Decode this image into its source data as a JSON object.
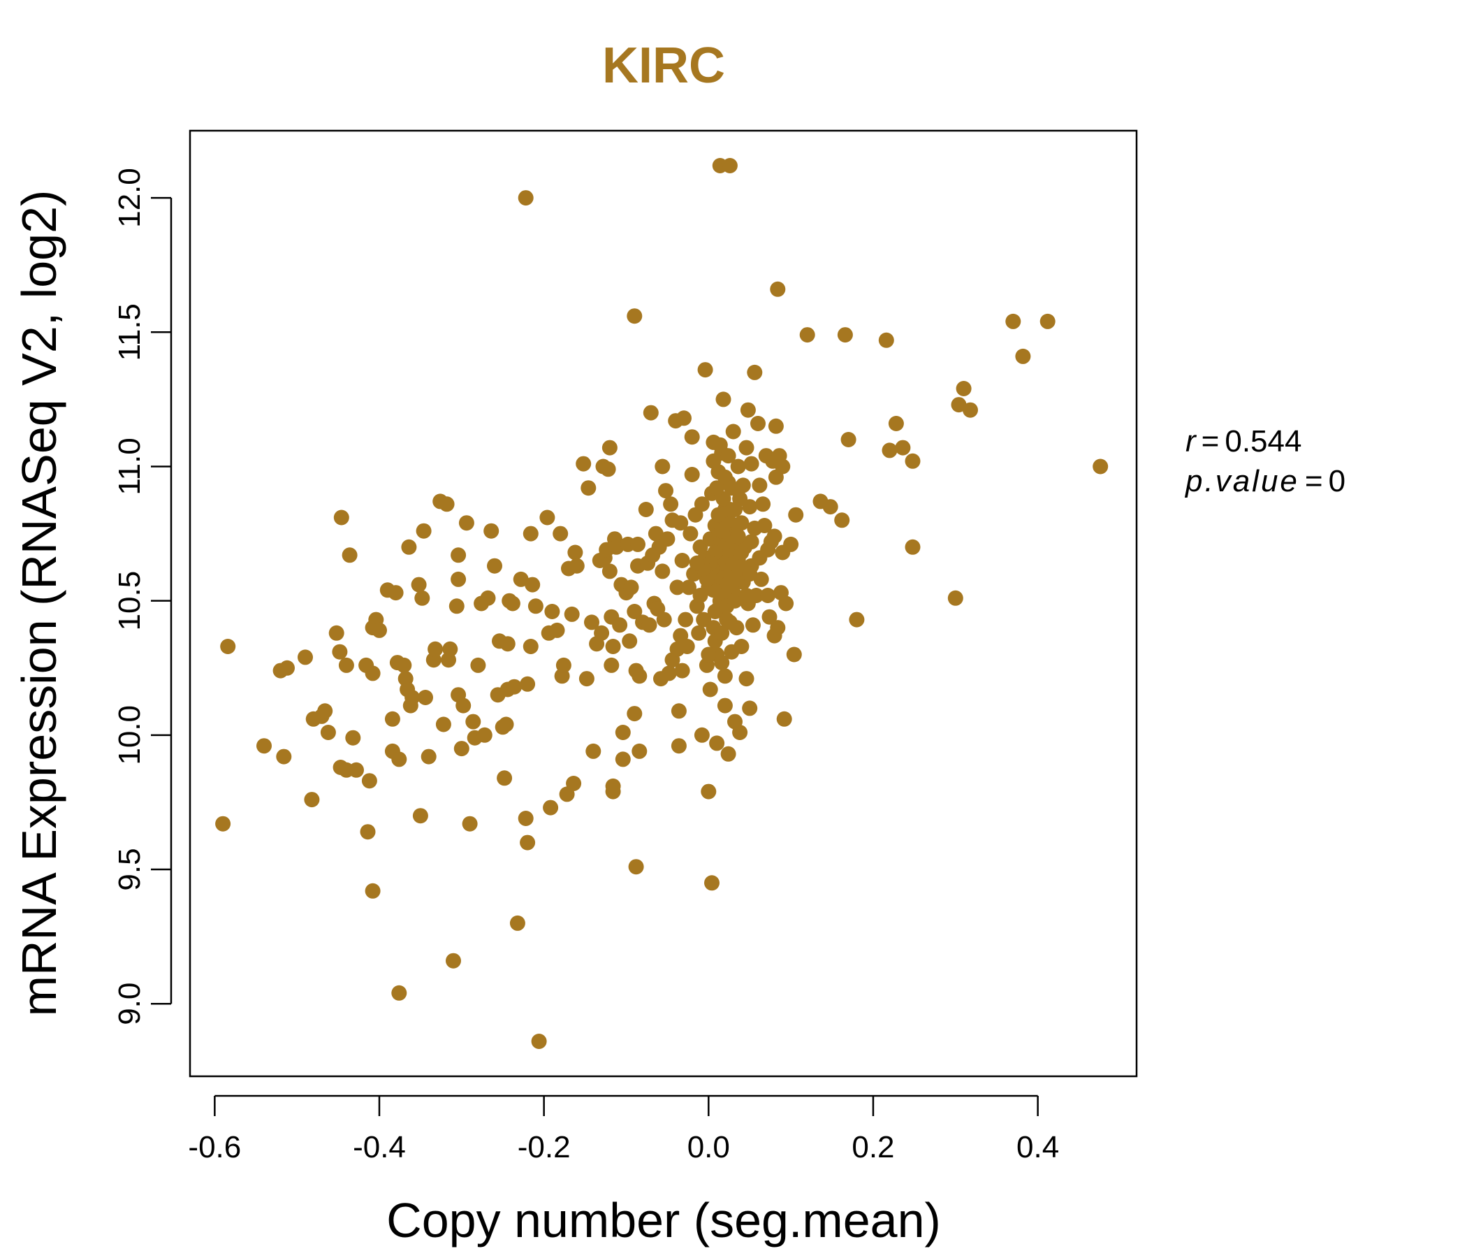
{
  "chart_data": {
    "type": "scatter",
    "title": "KIRC",
    "xlabel": "Copy number (seg.mean)",
    "ylabel": "mRNA Expression (RNASeq V2, log2)",
    "xlim": [
      -0.63,
      0.52
    ],
    "ylim": [
      8.73,
      12.25
    ],
    "x_ticks": [
      -0.6,
      -0.4,
      -0.2,
      0.0,
      0.2,
      0.4
    ],
    "x_tick_labels": [
      "-0.6",
      "-0.4",
      "-0.2",
      "0.0",
      "0.2",
      "0.4"
    ],
    "y_ticks": [
      9.0,
      9.5,
      10.0,
      10.5,
      11.0,
      11.5,
      12.0
    ],
    "y_tick_labels": [
      "9.0",
      "9.5",
      "10.0",
      "10.5",
      "11.0",
      "11.5",
      "12.0"
    ],
    "grid": false,
    "point_color": "#A67720",
    "annotation": {
      "r_symbol": "r",
      "r_value": "0.544",
      "p_symbol": "p.value",
      "p_value": "0",
      "eq": "="
    },
    "points": [
      [
        -0.59,
        9.67
      ],
      [
        -0.584,
        10.33
      ],
      [
        -0.54,
        9.96
      ],
      [
        -0.52,
        10.24
      ],
      [
        -0.512,
        10.25
      ],
      [
        -0.516,
        9.92
      ],
      [
        -0.49,
        10.29
      ],
      [
        -0.482,
        9.76
      ],
      [
        -0.48,
        10.06
      ],
      [
        -0.47,
        10.07
      ],
      [
        -0.466,
        10.09
      ],
      [
        -0.462,
        10.01
      ],
      [
        -0.452,
        10.38
      ],
      [
        -0.448,
        10.31
      ],
      [
        -0.446,
        10.81
      ],
      [
        -0.447,
        9.88
      ],
      [
        -0.44,
        9.87
      ],
      [
        -0.44,
        10.26
      ],
      [
        -0.436,
        10.67
      ],
      [
        -0.432,
        9.99
      ],
      [
        -0.428,
        9.87
      ],
      [
        -0.416,
        10.26
      ],
      [
        -0.414,
        9.64
      ],
      [
        -0.412,
        9.83
      ],
      [
        -0.408,
        10.23
      ],
      [
        -0.408,
        10.4
      ],
      [
        -0.404,
        10.43
      ],
      [
        -0.4,
        10.39
      ],
      [
        -0.408,
        9.42
      ],
      [
        -0.39,
        10.54
      ],
      [
        -0.384,
        9.94
      ],
      [
        -0.384,
        10.06
      ],
      [
        -0.38,
        10.53
      ],
      [
        -0.378,
        10.27
      ],
      [
        -0.376,
        9.91
      ],
      [
        -0.376,
        9.04
      ],
      [
        -0.37,
        10.26
      ],
      [
        -0.368,
        10.21
      ],
      [
        -0.366,
        10.17
      ],
      [
        -0.364,
        10.7
      ],
      [
        -0.362,
        10.11
      ],
      [
        -0.36,
        10.14
      ],
      [
        -0.352,
        10.56
      ],
      [
        -0.35,
        9.7
      ],
      [
        -0.348,
        10.51
      ],
      [
        -0.346,
        10.76
      ],
      [
        -0.344,
        10.14
      ],
      [
        -0.34,
        9.92
      ],
      [
        -0.334,
        10.28
      ],
      [
        -0.332,
        10.32
      ],
      [
        -0.326,
        10.87
      ],
      [
        -0.322,
        10.04
      ],
      [
        -0.318,
        10.86
      ],
      [
        -0.316,
        10.28
      ],
      [
        -0.314,
        10.32
      ],
      [
        -0.31,
        9.16
      ],
      [
        -0.306,
        10.48
      ],
      [
        -0.304,
        10.58
      ],
      [
        -0.304,
        10.67
      ],
      [
        -0.304,
        10.15
      ],
      [
        -0.3,
        9.95
      ],
      [
        -0.298,
        10.11
      ],
      [
        -0.294,
        10.79
      ],
      [
        -0.29,
        9.67
      ],
      [
        -0.286,
        10.05
      ],
      [
        -0.284,
        9.99
      ],
      [
        -0.28,
        10.26
      ],
      [
        -0.276,
        10.49
      ],
      [
        -0.272,
        10.0
      ],
      [
        -0.268,
        10.51
      ],
      [
        -0.264,
        10.76
      ],
      [
        -0.26,
        10.63
      ],
      [
        -0.256,
        10.15
      ],
      [
        -0.254,
        10.35
      ],
      [
        -0.25,
        10.03
      ],
      [
        -0.248,
        9.84
      ],
      [
        -0.246,
        10.04
      ],
      [
        -0.244,
        10.34
      ],
      [
        -0.244,
        10.17
      ],
      [
        -0.242,
        10.5
      ],
      [
        -0.238,
        10.49
      ],
      [
        -0.236,
        10.18
      ],
      [
        -0.232,
        9.3
      ],
      [
        -0.228,
        10.58
      ],
      [
        -0.222,
        12.0
      ],
      [
        -0.222,
        9.69
      ],
      [
        -0.22,
        10.19
      ],
      [
        -0.22,
        9.6
      ],
      [
        -0.216,
        10.75
      ],
      [
        -0.216,
        10.33
      ],
      [
        -0.214,
        10.56
      ],
      [
        -0.21,
        10.48
      ],
      [
        -0.206,
        8.86
      ],
      [
        -0.196,
        10.81
      ],
      [
        -0.194,
        10.38
      ],
      [
        -0.192,
        9.73
      ],
      [
        -0.19,
        10.46
      ],
      [
        -0.184,
        10.39
      ],
      [
        -0.18,
        10.75
      ],
      [
        -0.178,
        10.22
      ],
      [
        -0.176,
        10.26
      ],
      [
        -0.172,
        9.78
      ],
      [
        -0.17,
        10.62
      ],
      [
        -0.166,
        10.45
      ],
      [
        -0.162,
        10.68
      ],
      [
        -0.16,
        10.63
      ],
      [
        -0.164,
        9.82
      ],
      [
        -0.152,
        11.01
      ],
      [
        -0.148,
        10.21
      ],
      [
        -0.146,
        10.92
      ],
      [
        -0.142,
        10.42
      ],
      [
        -0.14,
        9.94
      ],
      [
        -0.136,
        10.34
      ],
      [
        -0.132,
        10.65
      ],
      [
        -0.13,
        10.38
      ],
      [
        -0.128,
        11.0
      ],
      [
        -0.126,
        10.66
      ],
      [
        -0.124,
        10.69
      ],
      [
        -0.122,
        10.99
      ],
      [
        -0.12,
        10.61
      ],
      [
        -0.12,
        11.07
      ],
      [
        -0.118,
        10.26
      ],
      [
        -0.118,
        10.44
      ],
      [
        -0.116,
        10.33
      ],
      [
        -0.116,
        9.81
      ],
      [
        -0.116,
        9.79
      ],
      [
        -0.114,
        10.73
      ],
      [
        -0.112,
        10.7
      ],
      [
        -0.108,
        10.41
      ],
      [
        -0.106,
        10.56
      ],
      [
        -0.104,
        10.01
      ],
      [
        -0.104,
        9.91
      ],
      [
        -0.1,
        10.53
      ],
      [
        -0.098,
        10.71
      ],
      [
        -0.096,
        10.35
      ],
      [
        -0.094,
        10.55
      ],
      [
        -0.09,
        10.46
      ],
      [
        -0.09,
        10.08
      ],
      [
        -0.09,
        11.56
      ],
      [
        -0.088,
        10.24
      ],
      [
        -0.088,
        9.51
      ],
      [
        -0.086,
        10.71
      ],
      [
        -0.086,
        10.63
      ],
      [
        -0.084,
        9.94
      ],
      [
        -0.084,
        10.22
      ],
      [
        -0.08,
        10.42
      ],
      [
        -0.076,
        10.84
      ],
      [
        -0.074,
        10.64
      ],
      [
        -0.072,
        10.41
      ],
      [
        -0.07,
        11.2
      ],
      [
        -0.068,
        10.67
      ],
      [
        -0.066,
        10.49
      ],
      [
        -0.064,
        10.75
      ],
      [
        -0.062,
        10.47
      ],
      [
        -0.06,
        10.7
      ],
      [
        -0.058,
        10.21
      ],
      [
        -0.056,
        11.0
      ],
      [
        -0.056,
        10.61
      ],
      [
        -0.054,
        10.43
      ],
      [
        -0.052,
        10.91
      ],
      [
        -0.05,
        10.73
      ],
      [
        -0.048,
        10.23
      ],
      [
        -0.046,
        10.86
      ],
      [
        -0.044,
        10.28
      ],
      [
        -0.044,
        10.8
      ],
      [
        -0.04,
        11.17
      ],
      [
        -0.038,
        10.55
      ],
      [
        -0.038,
        10.32
      ],
      [
        -0.036,
        10.09
      ],
      [
        -0.036,
        9.96
      ],
      [
        -0.034,
        10.37
      ],
      [
        -0.034,
        10.79
      ],
      [
        -0.032,
        10.24
      ],
      [
        -0.032,
        10.65
      ],
      [
        -0.03,
        11.18
      ],
      [
        -0.028,
        10.43
      ],
      [
        -0.026,
        10.33
      ],
      [
        -0.024,
        10.55
      ],
      [
        -0.022,
        10.75
      ],
      [
        -0.02,
        10.97
      ],
      [
        -0.02,
        11.11
      ],
      [
        -0.018,
        10.6
      ],
      [
        -0.016,
        10.82
      ],
      [
        -0.014,
        10.48
      ],
      [
        -0.012,
        10.38
      ],
      [
        -0.01,
        10.7
      ],
      [
        -0.008,
        10.0
      ],
      [
        -0.008,
        10.86
      ],
      [
        -0.006,
        10.43
      ],
      [
        -0.004,
        10.66
      ],
      [
        -0.004,
        11.36
      ],
      [
        -0.002,
        10.26
      ],
      [
        0.0,
        10.55
      ],
      [
        0.0,
        9.79
      ],
      [
        0.002,
        10.73
      ],
      [
        0.002,
        10.17
      ],
      [
        0.004,
        10.9
      ],
      [
        0.004,
        9.45
      ],
      [
        0.006,
        10.61
      ],
      [
        0.006,
        11.09
      ],
      [
        0.008,
        10.78
      ],
      [
        0.008,
        10.35
      ],
      [
        0.01,
        10.64
      ],
      [
        0.01,
        9.97
      ],
      [
        0.012,
        10.98
      ],
      [
        0.012,
        10.47
      ],
      [
        0.014,
        12.12
      ],
      [
        0.014,
        10.71
      ],
      [
        0.016,
        10.27
      ],
      [
        0.016,
        11.05
      ],
      [
        0.018,
        11.25
      ],
      [
        0.018,
        10.58
      ],
      [
        0.02,
        10.84
      ],
      [
        0.02,
        10.11
      ],
      [
        0.022,
        10.69
      ],
      [
        0.022,
        10.43
      ],
      [
        0.024,
        10.94
      ],
      [
        0.024,
        9.93
      ],
      [
        0.026,
        12.12
      ],
      [
        0.026,
        10.62
      ],
      [
        0.028,
        10.76
      ],
      [
        0.028,
        10.31
      ],
      [
        0.03,
        11.13
      ],
      [
        0.03,
        10.53
      ],
      [
        0.032,
        10.84
      ],
      [
        0.032,
        10.05
      ],
      [
        0.034,
        10.72
      ],
      [
        0.034,
        10.4
      ],
      [
        0.036,
        11.0
      ],
      [
        0.036,
        10.65
      ],
      [
        0.038,
        10.88
      ],
      [
        0.038,
        10.01
      ],
      [
        0.04,
        10.79
      ],
      [
        0.04,
        10.33
      ],
      [
        0.042,
        10.57
      ],
      [
        0.042,
        10.93
      ],
      [
        0.044,
        10.7
      ],
      [
        0.046,
        11.07
      ],
      [
        0.046,
        10.21
      ],
      [
        0.048,
        10.49
      ],
      [
        0.048,
        11.21
      ],
      [
        0.05,
        10.85
      ],
      [
        0.05,
        10.1
      ],
      [
        0.052,
        10.63
      ],
      [
        0.052,
        11.01
      ],
      [
        0.054,
        10.41
      ],
      [
        0.056,
        11.35
      ],
      [
        0.056,
        10.77
      ],
      [
        0.058,
        10.52
      ],
      [
        0.06,
        11.16
      ],
      [
        0.062,
        10.93
      ],
      [
        0.062,
        10.66
      ],
      [
        0.064,
        10.58
      ],
      [
        0.066,
        10.86
      ],
      [
        0.068,
        10.78
      ],
      [
        0.07,
        11.04
      ],
      [
        0.072,
        10.69
      ],
      [
        0.072,
        10.52
      ],
      [
        0.074,
        10.44
      ],
      [
        0.076,
        10.72
      ],
      [
        0.078,
        11.02
      ],
      [
        0.08,
        10.74
      ],
      [
        0.08,
        10.37
      ],
      [
        0.082,
        11.15
      ],
      [
        0.082,
        10.96
      ],
      [
        0.084,
        11.66
      ],
      [
        0.084,
        10.4
      ],
      [
        0.086,
        11.04
      ],
      [
        0.088,
        10.53
      ],
      [
        0.09,
        10.68
      ],
      [
        0.09,
        11.0
      ],
      [
        0.092,
        10.06
      ],
      [
        0.094,
        10.49
      ],
      [
        0.1,
        10.71
      ],
      [
        0.104,
        10.3
      ],
      [
        0.106,
        10.82
      ],
      [
        0.12,
        11.49
      ],
      [
        0.136,
        10.87
      ],
      [
        0.148,
        10.85
      ],
      [
        0.162,
        10.8
      ],
      [
        0.166,
        11.49
      ],
      [
        0.17,
        11.1
      ],
      [
        0.18,
        10.43
      ],
      [
        0.216,
        11.47
      ],
      [
        0.22,
        11.06
      ],
      [
        0.228,
        11.16
      ],
      [
        0.236,
        11.07
      ],
      [
        0.248,
        11.02
      ],
      [
        0.248,
        10.7
      ],
      [
        0.3,
        10.51
      ],
      [
        0.304,
        11.23
      ],
      [
        0.31,
        11.29
      ],
      [
        0.318,
        11.21
      ],
      [
        0.37,
        11.54
      ],
      [
        0.382,
        11.41
      ],
      [
        0.412,
        11.54
      ],
      [
        0.476,
        11.0
      ],
      [
        0.01,
        10.6
      ],
      [
        0.012,
        10.62
      ],
      [
        0.014,
        10.58
      ],
      [
        0.016,
        10.66
      ],
      [
        0.018,
        10.64
      ],
      [
        0.02,
        10.7
      ],
      [
        0.022,
        10.56
      ],
      [
        0.024,
        10.74
      ],
      [
        0.026,
        10.68
      ],
      [
        0.028,
        10.6
      ],
      [
        0.03,
        10.72
      ],
      [
        0.006,
        10.54
      ],
      [
        0.008,
        10.68
      ],
      [
        0.004,
        10.62
      ],
      [
        0.002,
        10.64
      ],
      [
        0.016,
        10.76
      ],
      [
        0.024,
        10.8
      ],
      [
        0.014,
        10.5
      ],
      [
        0.02,
        10.52
      ],
      [
        0.03,
        10.64
      ],
      [
        0.034,
        10.58
      ],
      [
        0.038,
        10.62
      ],
      [
        0.036,
        10.74
      ],
      [
        0.026,
        10.84
      ],
      [
        0.018,
        10.88
      ],
      [
        0.012,
        10.82
      ],
      [
        0.008,
        10.46
      ],
      [
        0.022,
        10.48
      ],
      [
        0.032,
        10.5
      ],
      [
        0.04,
        10.68
      ],
      [
        -0.002,
        10.58
      ],
      [
        -0.006,
        10.62
      ],
      [
        0.044,
        10.62
      ],
      [
        0.01,
        10.92
      ],
      [
        0.02,
        10.96
      ],
      [
        0.028,
        10.92
      ],
      [
        0.006,
        10.4
      ],
      [
        0.016,
        10.38
      ],
      [
        0.026,
        10.42
      ],
      [
        0.01,
        10.3
      ],
      [
        0.02,
        10.22
      ],
      [
        0.0,
        10.3
      ],
      [
        -0.01,
        10.52
      ],
      [
        -0.014,
        10.64
      ],
      [
        0.05,
        10.6
      ],
      [
        0.052,
        10.72
      ],
      [
        0.046,
        10.52
      ],
      [
        0.006,
        11.02
      ],
      [
        0.014,
        11.08
      ],
      [
        0.024,
        11.04
      ]
    ]
  }
}
